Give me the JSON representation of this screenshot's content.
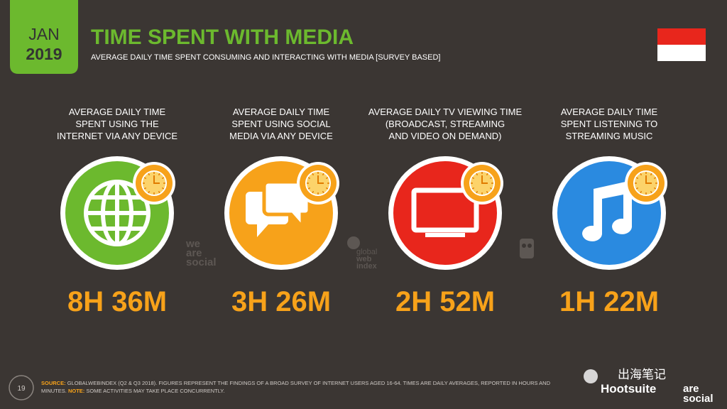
{
  "header": {
    "badge": [
      "JAN",
      "2019"
    ],
    "title": "TIME SPENT WITH MEDIA",
    "subtitle": "AVERAGE DAILY TIME SPENT CONSUMING AND INTERACTING WITH MEDIA [SURVEY BASED]"
  },
  "cards": [
    {
      "label": [
        "AVERAGE DAILY TIME",
        "SPENT USING THE",
        "INTERNET VIA ANY DEVICE"
      ],
      "value": "8H 36M"
    },
    {
      "label": [
        "AVERAGE DAILY TIME",
        "SPENT USING SOCIAL",
        "MEDIA VIA ANY DEVICE"
      ],
      "value": "3H 26M"
    },
    {
      "label": [
        "AVERAGE DAILY TV VIEWING TIME",
        "(BROADCAST, STREAMING",
        "AND VIDEO ON DEMAND)"
      ],
      "value": "2H 52M"
    },
    {
      "label": [
        "AVERAGE DAILY TIME",
        "SPENT LISTENING TO",
        "STREAMING MUSIC"
      ],
      "value": "1H 22M"
    }
  ],
  "watermarks": {
    "we_are_social": [
      "we",
      "are",
      "social"
    ],
    "globalwebindex": [
      "global",
      "web",
      "index"
    ]
  },
  "footer": {
    "page": "19",
    "source_label": "SOURCE:",
    "source": "GLOBALWEBINDEX (Q2 & Q3 2018). FIGURES REPRESENT THE FINDINGS OF A BROAD SURVEY OF INTERNET USERS AGED 16-64. TIMES ARE DAILY AVERAGES, REPORTED IN HOURS AND MINUTES.",
    "note_label": "NOTE:",
    "note": "SOME ACTIVITIES MAY TAKE PLACE CONCURRENTLY.",
    "brands": [
      "出海笔记",
      "Hootsuite",
      "are",
      "social"
    ]
  }
}
